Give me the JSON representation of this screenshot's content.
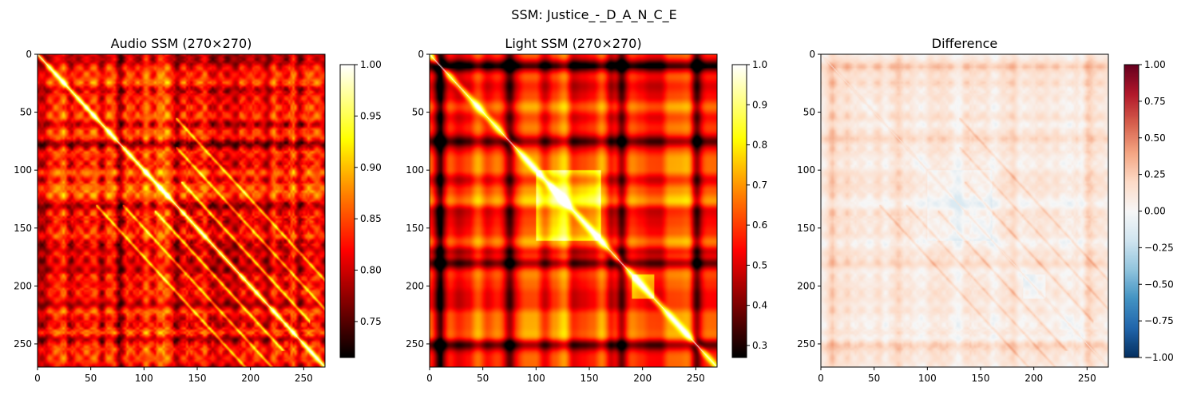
{
  "figure": {
    "title": "SSM: Justice_-_D_A_N_C_E"
  },
  "chart_data": [
    {
      "type": "heatmap",
      "title": "Audio SSM (270×270)",
      "size": 270,
      "xlim": [
        0,
        270
      ],
      "ylim": [
        270,
        0
      ],
      "xticks": [
        0,
        50,
        100,
        150,
        200,
        250
      ],
      "yticks": [
        0,
        50,
        100,
        150,
        200,
        250
      ],
      "colormap": "hot",
      "clim": [
        0.715,
        1.0
      ],
      "colorbar_ticks": [
        "0.75",
        "0.80",
        "0.85",
        "0.90",
        "0.95",
        "1.00"
      ],
      "colorbar_values": [
        0.75,
        0.8,
        0.85,
        0.9,
        0.95,
        1.0
      ],
      "features": {
        "diagonal": 1.0,
        "dark_bands": [
          75,
          130,
          175,
          210,
          245
        ],
        "parallel_stripes": [
          {
            "offset": 25,
            "from": 135,
            "to": 230
          },
          {
            "offset": 50,
            "from": 130,
            "to": 230
          },
          {
            "offset": 75,
            "from": 130,
            "to": 230
          }
        ]
      }
    },
    {
      "type": "heatmap",
      "title": "Light SSM (270×270)",
      "size": 270,
      "xlim": [
        0,
        270
      ],
      "ylim": [
        270,
        0
      ],
      "xticks": [
        0,
        50,
        100,
        150,
        200,
        250
      ],
      "yticks": [
        0,
        50,
        100,
        150,
        200,
        250
      ],
      "colormap": "hot",
      "clim": [
        0.27,
        1.0
      ],
      "colorbar_ticks": [
        "0.3",
        "0.4",
        "0.5",
        "0.6",
        "0.7",
        "0.8",
        "0.9",
        "1.0"
      ],
      "colorbar_values": [
        0.3,
        0.4,
        0.5,
        0.6,
        0.7,
        0.8,
        0.9,
        1.0
      ],
      "features": {
        "diagonal": 1.0,
        "dark_bands": [
          10,
          75,
          170,
          180,
          250
        ],
        "bright_blocks": [
          [
            100,
            160
          ],
          [
            190,
            210
          ]
        ]
      }
    },
    {
      "type": "heatmap",
      "title": "Difference",
      "size": 270,
      "xlim": [
        0,
        270
      ],
      "ylim": [
        270,
        0
      ],
      "xticks": [
        0,
        50,
        100,
        150,
        200,
        250
      ],
      "yticks": [
        0,
        50,
        100,
        150,
        200,
        250
      ],
      "colormap": "RdBu_r",
      "clim": [
        -1.0,
        1.0
      ],
      "colorbar_ticks": [
        "−1.00",
        "−0.75",
        "−0.50",
        "−0.25",
        "0.00",
        "0.25",
        "0.50",
        "0.75",
        "1.00"
      ],
      "colorbar_values": [
        -1.0,
        -0.75,
        -0.5,
        -0.25,
        0.0,
        0.25,
        0.5,
        0.75,
        1.0
      ],
      "features": {
        "range": [
          -0.1,
          0.45
        ]
      }
    }
  ]
}
